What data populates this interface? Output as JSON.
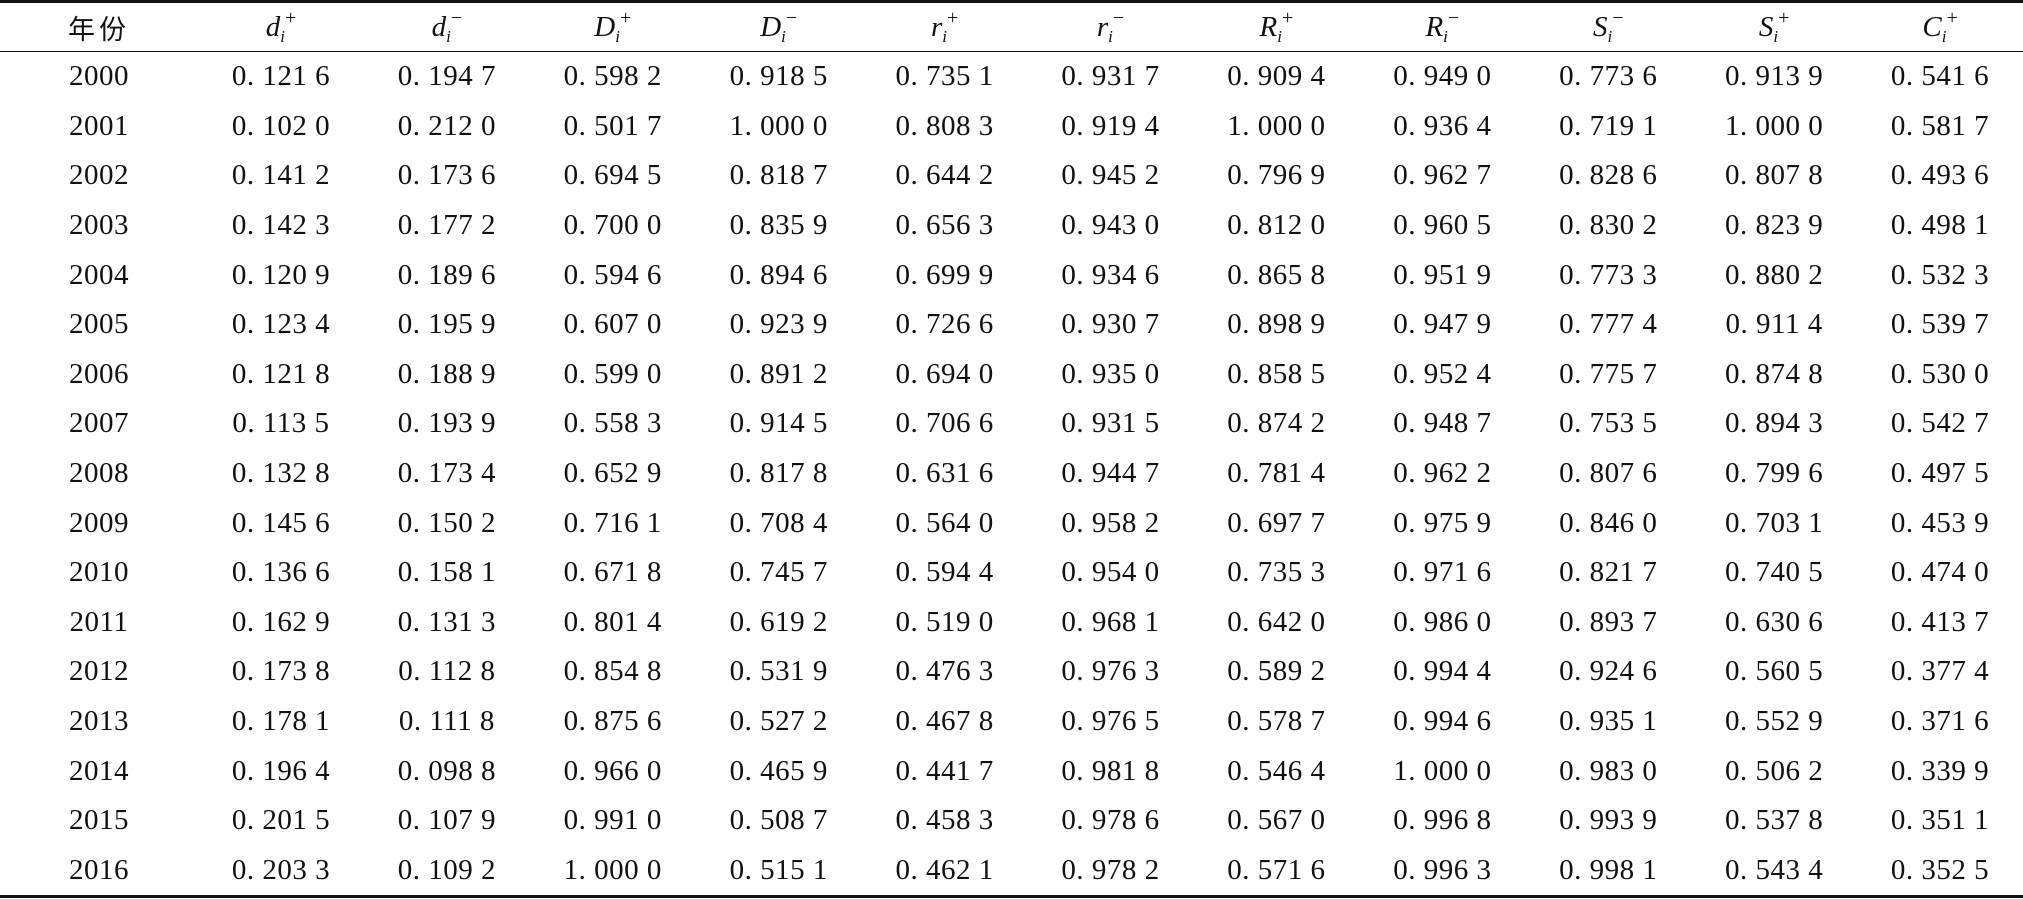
{
  "table": {
    "year_header": "年份",
    "columns": [
      {
        "sym": "d",
        "sub": "i",
        "sup": "+"
      },
      {
        "sym": "d",
        "sub": "i",
        "sup": "−"
      },
      {
        "sym": "D",
        "sub": "i",
        "sup": "+"
      },
      {
        "sym": "D",
        "sub": "i",
        "sup": "−"
      },
      {
        "sym": "r",
        "sub": "i",
        "sup": "+"
      },
      {
        "sym": "r",
        "sub": "i",
        "sup": "−"
      },
      {
        "sym": "R",
        "sub": "i",
        "sup": "+"
      },
      {
        "sym": "R",
        "sub": "i",
        "sup": "−"
      },
      {
        "sym": "S",
        "sub": "i",
        "sup": "−"
      },
      {
        "sym": "S",
        "sub": "i",
        "sup": "+"
      },
      {
        "sym": "C",
        "sub": "i",
        "sup": "+"
      }
    ],
    "rows": [
      {
        "year": "2000",
        "values": [
          "0. 121 6",
          "0. 194 7",
          "0. 598 2",
          "0. 918 5",
          "0. 735 1",
          "0. 931 7",
          "0. 909 4",
          "0. 949 0",
          "0. 773 6",
          "0. 913 9",
          "0. 541 6"
        ]
      },
      {
        "year": "2001",
        "values": [
          "0. 102 0",
          "0. 212 0",
          "0. 501 7",
          "1. 000 0",
          "0. 808 3",
          "0. 919 4",
          "1. 000 0",
          "0. 936 4",
          "0. 719 1",
          "1. 000 0",
          "0. 581 7"
        ]
      },
      {
        "year": "2002",
        "values": [
          "0. 141 2",
          "0. 173 6",
          "0. 694 5",
          "0. 818 7",
          "0. 644 2",
          "0. 945 2",
          "0. 796 9",
          "0. 962 7",
          "0. 828 6",
          "0. 807 8",
          "0. 493 6"
        ]
      },
      {
        "year": "2003",
        "values": [
          "0. 142 3",
          "0. 177 2",
          "0. 700 0",
          "0. 835 9",
          "0. 656 3",
          "0. 943 0",
          "0. 812 0",
          "0. 960 5",
          "0. 830 2",
          "0. 823 9",
          "0. 498 1"
        ]
      },
      {
        "year": "2004",
        "values": [
          "0. 120 9",
          "0. 189 6",
          "0. 594 6",
          "0. 894 6",
          "0. 699 9",
          "0. 934 6",
          "0. 865 8",
          "0. 951 9",
          "0. 773 3",
          "0. 880 2",
          "0. 532 3"
        ]
      },
      {
        "year": "2005",
        "values": [
          "0. 123 4",
          "0. 195 9",
          "0. 607 0",
          "0. 923 9",
          "0. 726 6",
          "0. 930 7",
          "0. 898 9",
          "0. 947 9",
          "0. 777 4",
          "0. 911 4",
          "0. 539 7"
        ]
      },
      {
        "year": "2006",
        "values": [
          "0. 121 8",
          "0. 188 9",
          "0. 599 0",
          "0. 891 2",
          "0. 694 0",
          "0. 935 0",
          "0. 858 5",
          "0. 952 4",
          "0. 775 7",
          "0. 874 8",
          "0. 530 0"
        ]
      },
      {
        "year": "2007",
        "values": [
          "0. 113 5",
          "0. 193 9",
          "0. 558 3",
          "0. 914 5",
          "0. 706 6",
          "0. 931 5",
          "0. 874 2",
          "0. 948 7",
          "0. 753 5",
          "0. 894 3",
          "0. 542 7"
        ]
      },
      {
        "year": "2008",
        "values": [
          "0. 132 8",
          "0. 173 4",
          "0. 652 9",
          "0. 817 8",
          "0. 631 6",
          "0. 944 7",
          "0. 781 4",
          "0. 962 2",
          "0. 807 6",
          "0. 799 6",
          "0. 497 5"
        ]
      },
      {
        "year": "2009",
        "values": [
          "0. 145 6",
          "0. 150 2",
          "0. 716 1",
          "0. 708 4",
          "0. 564 0",
          "0. 958 2",
          "0. 697 7",
          "0. 975 9",
          "0. 846 0",
          "0. 703 1",
          "0. 453 9"
        ]
      },
      {
        "year": "2010",
        "values": [
          "0. 136 6",
          "0. 158 1",
          "0. 671 8",
          "0. 745 7",
          "0. 594 4",
          "0. 954 0",
          "0. 735 3",
          "0. 971 6",
          "0. 821 7",
          "0. 740 5",
          "0. 474 0"
        ]
      },
      {
        "year": "2011",
        "values": [
          "0. 162 9",
          "0. 131 3",
          "0. 801 4",
          "0. 619 2",
          "0. 519 0",
          "0. 968 1",
          "0. 642 0",
          "0. 986 0",
          "0. 893 7",
          "0. 630 6",
          "0. 413 7"
        ]
      },
      {
        "year": "2012",
        "values": [
          "0. 173 8",
          "0. 112 8",
          "0. 854 8",
          "0. 531 9",
          "0. 476 3",
          "0. 976 3",
          "0. 589 2",
          "0. 994 4",
          "0. 924 6",
          "0. 560 5",
          "0. 377 4"
        ]
      },
      {
        "year": "2013",
        "values": [
          "0. 178 1",
          "0. 111 8",
          "0. 875 6",
          "0. 527 2",
          "0. 467 8",
          "0. 976 5",
          "0. 578 7",
          "0. 994 6",
          "0. 935 1",
          "0. 552 9",
          "0. 371 6"
        ]
      },
      {
        "year": "2014",
        "values": [
          "0. 196 4",
          "0. 098 8",
          "0. 966 0",
          "0. 465 9",
          "0. 441 7",
          "0. 981 8",
          "0. 546 4",
          "1. 000 0",
          "0. 983 0",
          "0. 506 2",
          "0. 339 9"
        ]
      },
      {
        "year": "2015",
        "values": [
          "0. 201 5",
          "0. 107 9",
          "0. 991 0",
          "0. 508 7",
          "0. 458 3",
          "0. 978 6",
          "0. 567 0",
          "0. 996 8",
          "0. 993 9",
          "0. 537 8",
          "0. 351 1"
        ]
      },
      {
        "year": "2016",
        "values": [
          "0. 203 3",
          "0. 109 2",
          "1. 000 0",
          "0. 515 1",
          "0. 462 1",
          "0. 978 2",
          "0. 571 6",
          "0. 996 3",
          "0. 998 1",
          "0. 543 4",
          "0. 352 5"
        ]
      }
    ]
  }
}
